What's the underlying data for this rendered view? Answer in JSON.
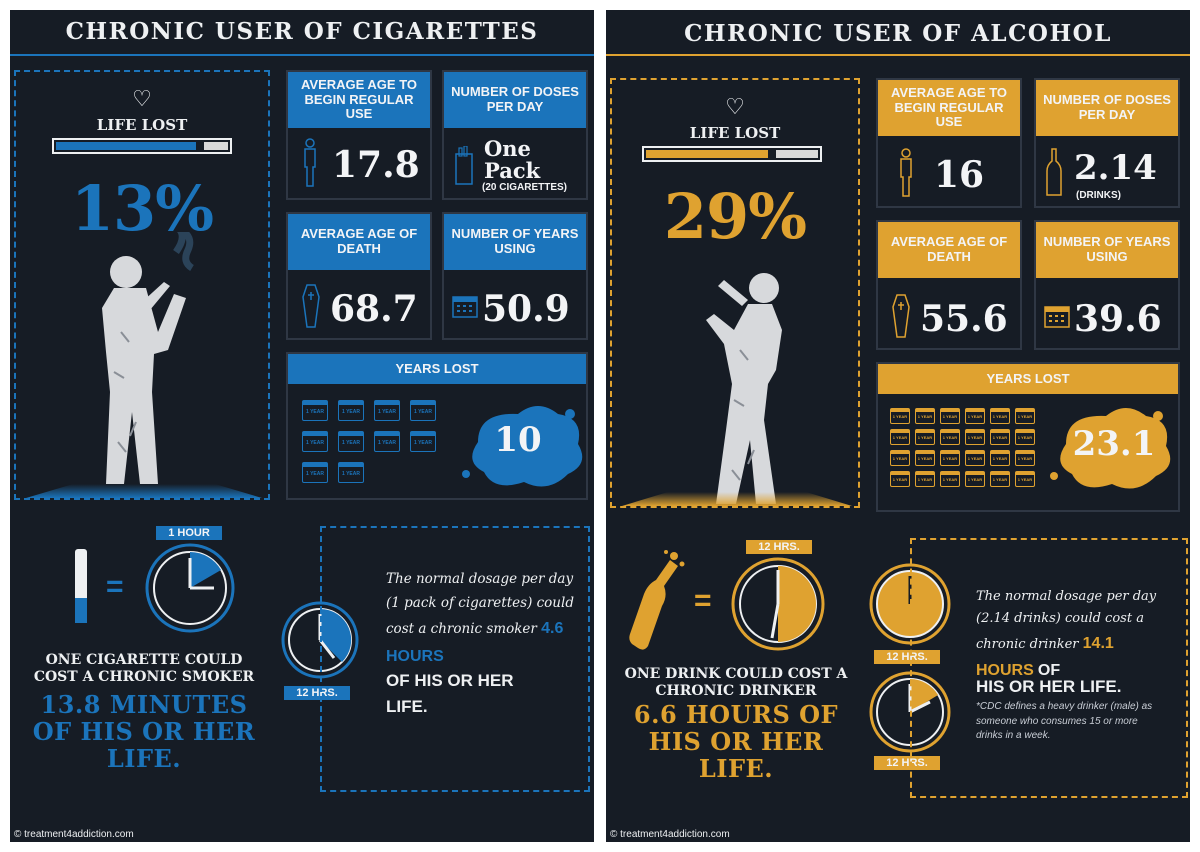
{
  "colors": {
    "background": "#161c25",
    "cigarette_accent": "#1b74bb",
    "alcohol_accent": "#dfa230",
    "text": "#eef0f2"
  },
  "cigarettes": {
    "title": "CHRONIC USER OF CIGARETTES",
    "life_lost_label": "LIFE LOST",
    "life_lost_percent": "13%",
    "life_lost_fraction": 0.13,
    "avg_age_begin_label": "AVERAGE AGE TO BEGIN REGULAR USE",
    "avg_age_begin_value": "17.8",
    "doses_label": "NUMBER OF DOSES PER DAY",
    "doses_value_line1": "One",
    "doses_value_line2": "Pack",
    "doses_sub": "(20 CIGARETTES)",
    "avg_age_death_label": "AVERAGE AGE OF DEATH",
    "avg_age_death_value": "68.7",
    "years_using_label": "NUMBER OF YEARS USING",
    "years_using_value": "50.9",
    "years_lost_label": "YEARS LOST",
    "years_lost_value": "10",
    "calendar_label": "1 YEAR",
    "calendar_count": 10,
    "clock1_label": "1 HOUR",
    "clock2_label": "12 HRS.",
    "bottom_title": "ONE CIGARETTE COULD COST A CHRONIC SMOKER",
    "bottom_big": "13.8 MINUTES OF HIS OR HER LIFE.",
    "note_text": "The normal dosage per day (1 pack of cigarettes) could cost a chronic smoker",
    "note_highlight": "4.6 HOURS",
    "note_strong": "OF HIS OR HER LIFE.",
    "credit": "© treatment4addiction.com"
  },
  "alcohol": {
    "title": "CHRONIC USER OF ALCOHOL",
    "life_lost_label": "LIFE LOST",
    "life_lost_percent": "29%",
    "life_lost_fraction": 0.29,
    "avg_age_begin_label": "AVERAGE AGE TO BEGIN REGULAR USE",
    "avg_age_begin_value": "16",
    "doses_label": "NUMBER OF DOSES PER DAY",
    "doses_value": "2.14",
    "doses_sub": "(DRINKS)",
    "avg_age_death_label": "AVERAGE AGE OF DEATH",
    "avg_age_death_value": "55.6",
    "years_using_label": "NUMBER OF YEARS USING",
    "years_using_value": "39.6",
    "years_lost_label": "YEARS LOST",
    "years_lost_value": "23.1",
    "calendar_label": "1 YEAR",
    "calendar_count": 24,
    "clock1_label": "12 HRS.",
    "clock2_label": "12 HRS.",
    "clock3_label": "12 HRS.",
    "bottom_title": "ONE DRINK COULD COST A CHRONIC DRINKER",
    "bottom_big": "6.6 HOURS OF HIS OR HER LIFE.",
    "note_text": "The normal dosage per day (2.14 drinks) could cost a chronic drinker",
    "note_highlight": "14.1 HOURS",
    "note_highlight_tail": "OF",
    "note_strong": "HIS OR HER LIFE.",
    "cdc_note": "*CDC defines a heavy drinker (male) as someone who consumes 15 or more drinks in a week.",
    "credit": "© treatment4addiction.com"
  }
}
